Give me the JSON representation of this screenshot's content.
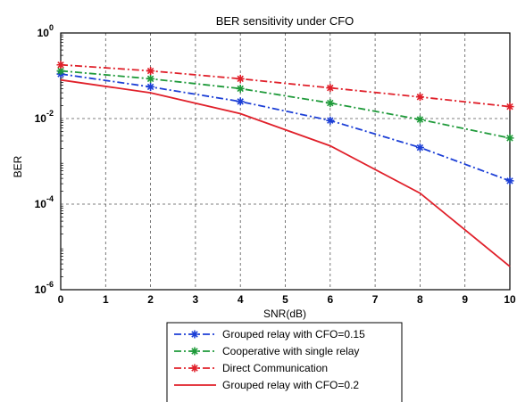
{
  "chart_data": {
    "type": "line",
    "title": "BER sensitivity under CFO",
    "xlabel": "SNR(dB)",
    "ylabel": "BER",
    "xlim": [
      0,
      10
    ],
    "ylim": [
      1e-06,
      1
    ],
    "yscale": "log",
    "grid": true,
    "legend_position": "bottom-outside",
    "x_ticks": [
      "0",
      "1",
      "2",
      "3",
      "4",
      "5",
      "6",
      "7",
      "8",
      "9",
      "10"
    ],
    "y_ticks": [
      {
        "value": 1,
        "base": "10",
        "exp": "0"
      },
      {
        "value": 0.01,
        "base": "10",
        "exp": "-2"
      },
      {
        "value": 0.0001,
        "base": "10",
        "exp": "-4"
      },
      {
        "value": 1e-06,
        "base": "10",
        "exp": "-6"
      }
    ],
    "x": [
      0,
      2,
      4,
      6,
      8,
      10
    ],
    "series": [
      {
        "name": "Grouped relay with CFO=0.15",
        "color": "#1c3fd6",
        "dash": "8,3,2,3",
        "marker": "*",
        "values": [
          0.11,
          0.055,
          0.025,
          0.009,
          0.0021,
          0.00035
        ]
      },
      {
        "name": "Cooperative with single relay",
        "color": "#1f9a3a",
        "dash": "8,3,2,3",
        "marker": "*",
        "values": [
          0.13,
          0.085,
          0.05,
          0.023,
          0.0095,
          0.0035
        ]
      },
      {
        "name": "Direct Communication",
        "color": "#e0202a",
        "dash": "8,3,2,3",
        "marker": "*",
        "values": [
          0.18,
          0.13,
          0.085,
          0.052,
          0.032,
          0.019
        ]
      },
      {
        "name": "Grouped relay with CFO=0.2",
        "color": "#e0202a",
        "dash": "",
        "marker": "",
        "values": [
          0.08,
          0.04,
          0.013,
          0.0023,
          0.00018,
          3.5e-06
        ]
      }
    ]
  }
}
